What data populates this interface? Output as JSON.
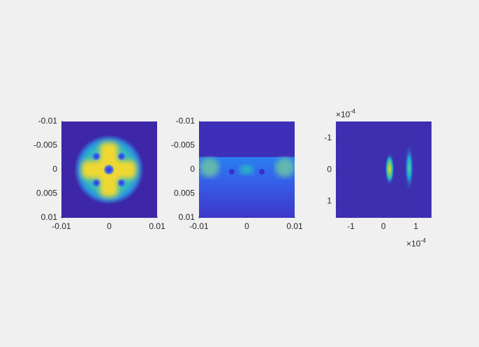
{
  "chart_data": [
    {
      "type": "image",
      "xlim": [
        -0.01,
        0.01
      ],
      "xticks": [
        -0.01,
        0,
        0.01
      ],
      "ylim": [
        -0.01,
        0.01
      ],
      "yticks": [
        -0.01,
        -0.005,
        0,
        0.005,
        0.01
      ],
      "y_reversed": true
    },
    {
      "type": "image",
      "xlim": [
        -0.01,
        0.01
      ],
      "xticks": [
        -0.01,
        0,
        0.01
      ],
      "ylim": [
        -0.01,
        0.01
      ],
      "yticks": [
        -0.01,
        -0.005,
        0,
        0.005,
        0.01
      ],
      "y_reversed": true
    },
    {
      "type": "image",
      "xlim": [
        -0.000146,
        0.000148
      ],
      "xticks": [
        {
          "value": -0.0001,
          "label": "-1"
        },
        {
          "value": 0,
          "label": "0"
        },
        {
          "value": 0.0001,
          "label": "1"
        }
      ],
      "ylim": [
        -0.000153,
        0.000152
      ],
      "yticks": [
        {
          "value": -0.0001,
          "label": "-1"
        },
        {
          "value": 0,
          "label": "0"
        },
        {
          "value": 0.0001,
          "label": "1"
        }
      ],
      "y_reversed": true,
      "x_exponent": {
        "base": "×10",
        "power": "-4"
      },
      "y_exponent": {
        "base": "×10",
        "power": "-4"
      }
    }
  ]
}
